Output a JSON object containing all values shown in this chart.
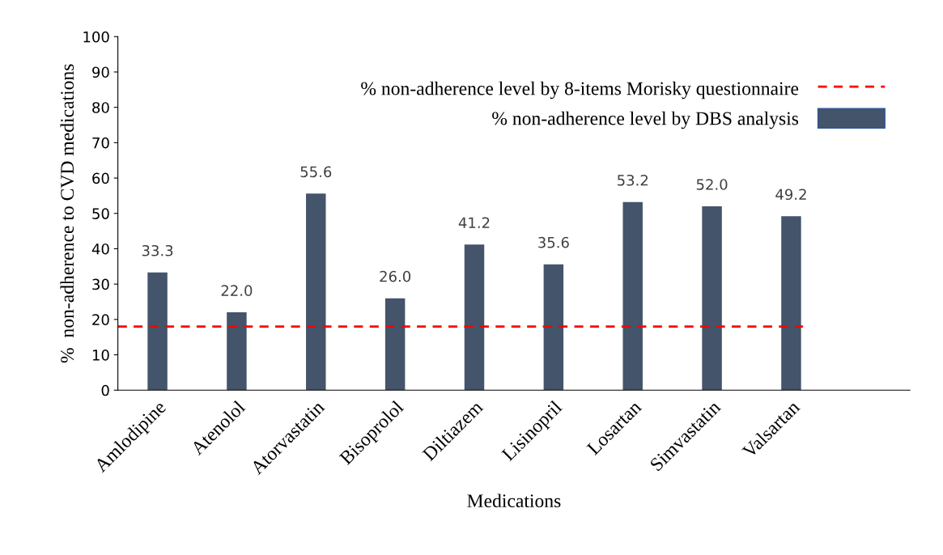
{
  "chart_data": {
    "type": "bar",
    "xlabel": "Medications",
    "ylabel": "%  non-adherence to CVD medications",
    "categories": [
      "Amlodipine",
      "Atenolol",
      "Atorvastatin",
      "Bisoprolol",
      "Diltiazem",
      "Lisinopril",
      "Losartan",
      "Simvastatin",
      "Valsartan"
    ],
    "series": [
      {
        "name": "% non-adherence level by DBS analysis",
        "color": "#44546a",
        "values": [
          33.3,
          22.0,
          55.6,
          26.0,
          41.2,
          35.6,
          53.2,
          52.0,
          49.2
        ]
      }
    ],
    "value_labels": [
      "33.3",
      "22.0",
      "55.6",
      "26.0",
      "41.2",
      "35.6",
      "53.2",
      "52.0",
      "49.2"
    ],
    "ref_lines": [
      {
        "axis": "y",
        "value": 18,
        "label": "% non-adherence level by 8-items Morisky questionnaire",
        "color": "#ff0000",
        "line_style": "dashed"
      }
    ],
    "ylim": [
      0,
      100
    ],
    "yticks": [
      0,
      10,
      20,
      30,
      40,
      50,
      60,
      70,
      80,
      90,
      100
    ],
    "grid": false,
    "legend": "top right"
  }
}
